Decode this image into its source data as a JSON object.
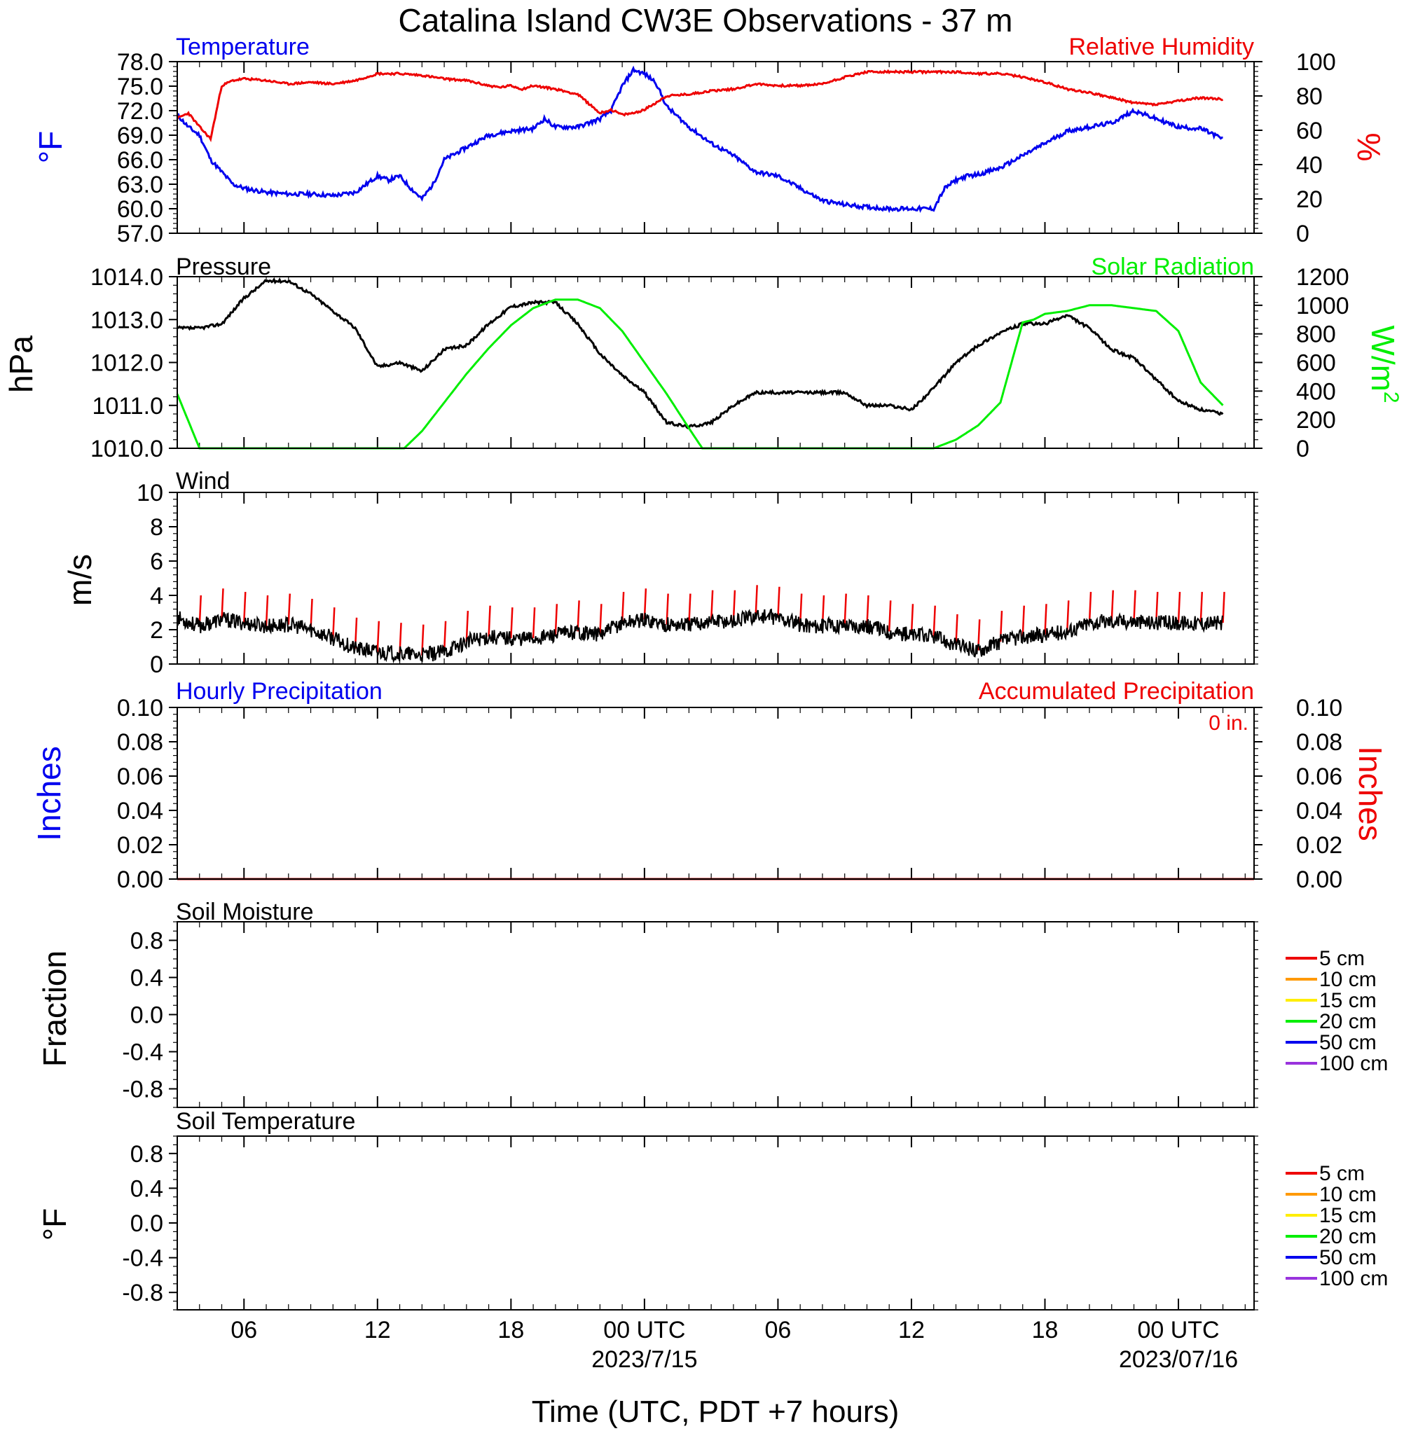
{
  "title": "Catalina Island CW3E Observations - 37 m",
  "colors": {
    "temperature": "#0000ee",
    "humidity": "#ee0000",
    "pressure": "#000000",
    "solar": "#00ee00",
    "wind": "#000000",
    "barb": "#ee0000",
    "precip_hourly": "#0000ee",
    "precip_accum": "#ee0000"
  },
  "x_axis": {
    "label": "Time (UTC, PDT +7 hours)",
    "range_hours": [
      -9,
      39.4
    ],
    "ticks": [
      {
        "hour": -6,
        "label": "06",
        "sub": ""
      },
      {
        "hour": 0,
        "label": "12",
        "sub": ""
      },
      {
        "hour": 6,
        "label": "18",
        "sub": ""
      },
      {
        "hour": 12,
        "label": "00 UTC",
        "sub": "2023/7/15"
      },
      {
        "hour": 18,
        "label": "06",
        "sub": ""
      },
      {
        "hour": 24,
        "label": "12",
        "sub": ""
      },
      {
        "hour": 30,
        "label": "18",
        "sub": ""
      },
      {
        "hour": 36,
        "label": "00 UTC",
        "sub": "2023/07/16"
      }
    ]
  },
  "panels": {
    "temp_rh": {
      "left_title": "Temperature",
      "right_title": "Relative Humidity",
      "left_ylabel": "°F",
      "right_ylabel": "%",
      "left_ticks": [
        "78.0",
        "75.0",
        "72.0",
        "69.0",
        "66.0",
        "63.0",
        "60.0",
        "57.0"
      ],
      "right_ticks": [
        "100",
        "80",
        "60",
        "40",
        "20",
        "0"
      ]
    },
    "pressure_solar": {
      "left_title": "Pressure",
      "right_title": "Solar Radiation",
      "left_ylabel": "hPa",
      "right_ylabel_base": "W/m",
      "right_ylabel_sup": "2",
      "left_ticks": [
        "1014.0",
        "1013.0",
        "1012.0",
        "1011.0",
        "1010.0"
      ],
      "right_ticks": [
        "1200",
        "1000",
        "800",
        "600",
        "400",
        "200",
        "0"
      ]
    },
    "wind": {
      "left_title": "Wind",
      "left_ylabel": "m/s",
      "left_ticks": [
        "10",
        "8",
        "6",
        "4",
        "2",
        "0"
      ]
    },
    "precip": {
      "left_title": "Hourly Precipitation",
      "right_title": "Accumulated Precipitation",
      "total_label": "0 in.",
      "left_ylabel": "Inches",
      "right_ylabel": "Inches",
      "left_ticks": [
        "0.10",
        "0.08",
        "0.06",
        "0.04",
        "0.02",
        "0.00"
      ],
      "right_ticks": [
        "0.10",
        "0.08",
        "0.06",
        "0.04",
        "0.02",
        "0.00"
      ]
    },
    "soil_moisture": {
      "left_title": "Soil Moisture",
      "left_ylabel": "Fraction",
      "left_ticks": [
        "0.8",
        "0.4",
        "0.0",
        "-0.4",
        "-0.8"
      ]
    },
    "soil_temp": {
      "left_title": "Soil Temperature",
      "left_ylabel": "°F",
      "left_ticks": [
        "0.8",
        "0.4",
        "0.0",
        "-0.4",
        "-0.8"
      ]
    }
  },
  "soil_legend": [
    {
      "label": "5 cm",
      "color": "#ee0000"
    },
    {
      "label": "10 cm",
      "color": "#ff9900"
    },
    {
      "label": "15 cm",
      "color": "#ffee00"
    },
    {
      "label": "20 cm",
      "color": "#00ee00"
    },
    {
      "label": "50 cm",
      "color": "#0000ee"
    },
    {
      "label": "100 cm",
      "color": "#9933dd"
    }
  ],
  "chart_data": {
    "type": "line",
    "x_unit": "hours relative to 2023/7/14 12 UTC",
    "temperature_F": {
      "ylim": [
        57,
        78
      ],
      "x": [
        -9,
        -8.5,
        -8,
        -7.5,
        -7,
        -6.5,
        -6,
        -5,
        -4,
        -3,
        -2,
        -1,
        -0.5,
        0,
        0.5,
        1,
        1.5,
        2,
        2.5,
        3,
        4,
        5,
        6,
        7,
        7.5,
        8,
        9,
        10,
        10.5,
        11,
        11.5,
        12,
        12.5,
        13,
        14,
        15,
        16,
        17,
        18,
        19,
        20,
        21,
        22,
        23,
        24,
        25,
        25.5,
        26,
        26.5,
        27,
        28,
        29,
        30,
        31,
        32,
        33,
        34,
        35,
        36,
        37,
        37.5,
        38
      ],
      "y": [
        71.5,
        70,
        69,
        66,
        64.5,
        63,
        62.5,
        62,
        61.8,
        61.8,
        61.6,
        62,
        63,
        64,
        63.5,
        64,
        62.5,
        61.2,
        63,
        66,
        67.5,
        69,
        69.5,
        69.8,
        71,
        70,
        70,
        71,
        72,
        75,
        77,
        76.5,
        75.5,
        72.5,
        70,
        68,
        66.5,
        64.5,
        64,
        62.5,
        61,
        60.5,
        60.2,
        60,
        60,
        60,
        62.5,
        63.5,
        64,
        64.2,
        65,
        66.5,
        68,
        69.5,
        70,
        70.5,
        72,
        71,
        70,
        69.8,
        69.2,
        68.5
      ]
    },
    "relative_humidity_pct": {
      "ylim": [
        0,
        100
      ],
      "x": [
        -9,
        -8.5,
        -8,
        -7.5,
        -7,
        -6.5,
        -6,
        -5,
        -4,
        -3,
        -2,
        -1,
        0,
        1,
        2,
        3,
        4,
        5,
        5.5,
        6,
        6.5,
        7,
        8,
        9,
        10,
        10.5,
        11,
        11.5,
        12,
        13,
        14,
        15,
        16,
        17,
        18,
        19,
        20,
        21,
        22,
        23,
        24,
        25,
        26,
        27,
        28,
        29,
        30,
        31,
        32,
        33,
        34,
        35,
        36,
        37,
        38
      ],
      "y": [
        67,
        70,
        62,
        55,
        86,
        89,
        90,
        89,
        87,
        88,
        87,
        89,
        93,
        93,
        92,
        90,
        89,
        86,
        85,
        86,
        84,
        86,
        84,
        81,
        70,
        72,
        69,
        70,
        72,
        80,
        81,
        83,
        84,
        87,
        86,
        86,
        87,
        91,
        94,
        94,
        94,
        94,
        94,
        93,
        93,
        91,
        88,
        84,
        82,
        79,
        76,
        75,
        77,
        79,
        78
      ]
    },
    "pressure_hPa": {
      "ylim": [
        1010,
        1014
      ],
      "x": [
        -9,
        -8,
        -7,
        -6,
        -5,
        -4,
        -3,
        -2,
        -1,
        0,
        1,
        2,
        3,
        4,
        5,
        6,
        7,
        8,
        9,
        10,
        11,
        12,
        13,
        14,
        15,
        16,
        17,
        18,
        19,
        20,
        21,
        22,
        23,
        24,
        25,
        26,
        27,
        28,
        29,
        30,
        31,
        32,
        33,
        34,
        35,
        36,
        37,
        38
      ],
      "y": [
        1012.8,
        1012.8,
        1012.9,
        1013.5,
        1013.9,
        1013.9,
        1013.6,
        1013.2,
        1012.8,
        1011.9,
        1012,
        1011.8,
        1012.3,
        1012.4,
        1012.9,
        1013.3,
        1013.4,
        1013.4,
        1012.9,
        1012.2,
        1011.7,
        1011.3,
        1010.6,
        1010.5,
        1010.6,
        1011,
        1011.3,
        1011.3,
        1011.3,
        1011.3,
        1011.3,
        1011,
        1011,
        1010.9,
        1011.4,
        1012,
        1012.4,
        1012.7,
        1012.9,
        1012.9,
        1013.1,
        1012.8,
        1012.3,
        1012.1,
        1011.6,
        1011.1,
        1010.9,
        1010.8
      ]
    },
    "solar_Wm2": {
      "ylim": [
        0,
        1200
      ],
      "x": [
        -9,
        -8,
        -7,
        -6,
        -5,
        -4,
        -3,
        -2,
        -1,
        0,
        0.8,
        1.2,
        2,
        3,
        4,
        5,
        6,
        7,
        8,
        9,
        10,
        11,
        12,
        13,
        14,
        14.6,
        15,
        16,
        17,
        18,
        19,
        20,
        21,
        22,
        23,
        24,
        24.8,
        25,
        26,
        27,
        28,
        28.5,
        29,
        29.5,
        30,
        31,
        32,
        33,
        34,
        35,
        36,
        37,
        38
      ],
      "y": [
        380,
        0,
        0,
        0,
        0,
        0,
        0,
        0,
        0,
        0,
        0,
        0,
        120,
        320,
        520,
        700,
        860,
        980,
        1040,
        1040,
        980,
        820,
        600,
        380,
        140,
        0,
        0,
        0,
        0,
        0,
        0,
        0,
        0,
        0,
        0,
        0,
        0,
        0,
        60,
        160,
        320,
        600,
        880,
        900,
        940,
        960,
        1000,
        1000,
        980,
        960,
        820,
        460,
        300
      ]
    },
    "wind_speed_ms": {
      "ylim": [
        0,
        10
      ],
      "x": [
        -9,
        -8,
        -7,
        -6,
        -5,
        -4,
        -3,
        -2,
        -1,
        0,
        1,
        2,
        3,
        4,
        5,
        6,
        7,
        8,
        9,
        10,
        11,
        12,
        13,
        14,
        15,
        16,
        17,
        18,
        19,
        20,
        21,
        22,
        23,
        24,
        25,
        26,
        27,
        28,
        29,
        30,
        31,
        32,
        33,
        34,
        35,
        36,
        37,
        38
      ],
      "y": [
        2.7,
        2.2,
        2.6,
        2.4,
        2.2,
        2.3,
        2,
        1.5,
        0.9,
        0.7,
        0.6,
        0.5,
        0.7,
        1.3,
        1.6,
        1.5,
        1.5,
        1.7,
        1.9,
        1.7,
        2.4,
        2.6,
        2.3,
        2.3,
        2.5,
        2.5,
        2.8,
        2.7,
        2.3,
        2.2,
        2.3,
        2.2,
        1.9,
        1.7,
        1.6,
        1.1,
        0.8,
        1.3,
        1.6,
        1.7,
        1.9,
        2.4,
        2.5,
        2.5,
        2.4,
        2.4,
        2.4,
        2.4
      ]
    },
    "precipitation_in": {
      "ylim": [
        0,
        0.1
      ],
      "x": [
        -9,
        39.4
      ],
      "hourly": [
        0,
        0
      ],
      "accumulated": [
        0,
        0
      ]
    },
    "soil_moisture_fraction": {
      "ylim": [
        -1,
        1
      ],
      "series": []
    },
    "soil_temperature_F": {
      "ylim": [
        -1,
        1
      ],
      "series": []
    }
  }
}
